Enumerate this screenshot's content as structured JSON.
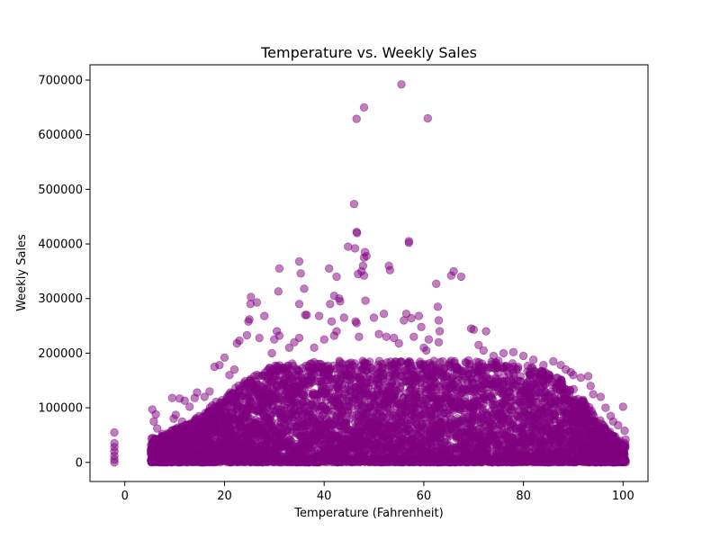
{
  "chart_data": {
    "type": "scatter",
    "title": "Temperature vs. Weekly Sales",
    "xlabel": "Temperature (Fahrenheit)",
    "ylabel": "Weekly Sales",
    "xlim": [
      -7,
      105
    ],
    "ylim": [
      -35000,
      728000
    ],
    "xticks": [
      0,
      20,
      40,
      60,
      80,
      100
    ],
    "yticks": [
      0,
      100000,
      200000,
      300000,
      400000,
      500000,
      600000,
      700000
    ],
    "ytick_labels": [
      "0",
      "100000",
      "200000",
      "300000",
      "400000",
      "500000",
      "600000",
      "700000"
    ],
    "xtick_labels": [
      "0",
      "20",
      "40",
      "60",
      "80",
      "100"
    ],
    "grid": false,
    "legend": "none",
    "color": "#800080",
    "alpha": 0.5,
    "series": [
      {
        "points": [
          [
            -2.1,
            55000
          ],
          [
            -2.1,
            35000
          ],
          [
            -2.1,
            28000
          ],
          [
            -2.1,
            20000
          ],
          [
            -2.1,
            12000
          ],
          [
            -2.1,
            5000
          ],
          [
            -2.1,
            0
          ],
          [
            5.5,
            97000
          ],
          [
            6.2,
            88000
          ],
          [
            5.8,
            75000
          ],
          [
            6.5,
            62000
          ],
          [
            7.5,
            52000
          ],
          [
            8.2,
            45000
          ],
          [
            9.5,
            118000
          ],
          [
            11.0,
            117000
          ],
          [
            12.0,
            113000
          ],
          [
            13.0,
            102000
          ],
          [
            14.0,
            118000
          ],
          [
            14.5,
            128000
          ],
          [
            10.2,
            87000
          ],
          [
            9.8,
            80000
          ],
          [
            11.5,
            75000
          ],
          [
            16.0,
            120000
          ],
          [
            17.0,
            130000
          ],
          [
            18.0,
            175000
          ],
          [
            19.0,
            178000
          ],
          [
            20.0,
            192000
          ],
          [
            21.0,
            160000
          ],
          [
            22.0,
            170000
          ],
          [
            22.5,
            218000
          ],
          [
            23.0,
            223000
          ],
          [
            24.5,
            233000
          ],
          [
            24.8,
            258000
          ],
          [
            25.0,
            262000
          ],
          [
            25.2,
            290000
          ],
          [
            25.3,
            303000
          ],
          [
            26.5,
            293000
          ],
          [
            27.0,
            228000
          ],
          [
            28.0,
            268000
          ],
          [
            29.5,
            200000
          ],
          [
            30.0,
            225000
          ],
          [
            30.5,
            240000
          ],
          [
            31.0,
            232000
          ],
          [
            31.0,
            355000
          ],
          [
            30.8,
            313000
          ],
          [
            33.0,
            210000
          ],
          [
            34.0,
            220000
          ],
          [
            35.0,
            228000
          ],
          [
            35.0,
            368000
          ],
          [
            35.3,
            346000
          ],
          [
            35.0,
            290000
          ],
          [
            36.0,
            318000
          ],
          [
            36.2,
            270000
          ],
          [
            36.5,
            270000
          ],
          [
            38.0,
            210000
          ],
          [
            39.0,
            268000
          ],
          [
            40.0,
            225000
          ],
          [
            41.0,
            355000
          ],
          [
            41.2,
            290000
          ],
          [
            41.5,
            258000
          ],
          [
            42.0,
            305000
          ],
          [
            42.5,
            340000
          ],
          [
            43.0,
            300000
          ],
          [
            43.2,
            295000
          ],
          [
            42.0,
            232000
          ],
          [
            42.5,
            240000
          ],
          [
            44.0,
            265000
          ],
          [
            44.8,
            395000
          ],
          [
            46.0,
            473000
          ],
          [
            46.2,
            392000
          ],
          [
            46.5,
            422000
          ],
          [
            46.6,
            420000
          ],
          [
            46.8,
            345000
          ],
          [
            47.5,
            350000
          ],
          [
            47.8,
            360000
          ],
          [
            48.0,
            375000
          ],
          [
            48.2,
            385000
          ],
          [
            48.5,
            378000
          ],
          [
            48.0,
            342000
          ],
          [
            48.3,
            296000
          ],
          [
            46.5,
            255000
          ],
          [
            46.3,
            258000
          ],
          [
            47.0,
            230000
          ],
          [
            46.5,
            629000
          ],
          [
            48.0,
            650000
          ],
          [
            50.0,
            265000
          ],
          [
            51.0,
            235000
          ],
          [
            52.0,
            272000
          ],
          [
            52.5,
            230000
          ],
          [
            53.0,
            360000
          ],
          [
            53.2,
            352000
          ],
          [
            54.0,
            228000
          ],
          [
            55.0,
            218000
          ],
          [
            55.5,
            692000
          ],
          [
            56.0,
            260000
          ],
          [
            56.5,
            272000
          ],
          [
            57.0,
            405000
          ],
          [
            57.0,
            402000
          ],
          [
            57.5,
            264000
          ],
          [
            58.0,
            230000
          ],
          [
            59.0,
            268000
          ],
          [
            59.5,
            248000
          ],
          [
            60.0,
            210000
          ],
          [
            60.5,
            205000
          ],
          [
            60.8,
            630000
          ],
          [
            61.0,
            225000
          ],
          [
            62.5,
            327000
          ],
          [
            62.8,
            285000
          ],
          [
            63.0,
            260000
          ],
          [
            63.2,
            240000
          ],
          [
            63.0,
            220000
          ],
          [
            65.5,
            342000
          ],
          [
            66.0,
            350000
          ],
          [
            67.5,
            340000
          ],
          [
            69.5,
            245000
          ],
          [
            70.0,
            243000
          ],
          [
            71.0,
            215000
          ],
          [
            72.5,
            240000
          ],
          [
            72.0,
            205000
          ],
          [
            74.0,
            195000
          ],
          [
            76.0,
            200000
          ],
          [
            78.0,
            202000
          ],
          [
            80.0,
            195000
          ],
          [
            82.0,
            188000
          ],
          [
            84.0,
            178000
          ],
          [
            86.0,
            185000
          ],
          [
            87.5,
            178000
          ],
          [
            88.5,
            170000
          ],
          [
            89.5,
            165000
          ],
          [
            90.0,
            160000
          ],
          [
            91.5,
            155000
          ],
          [
            93.0,
            158000
          ],
          [
            93.5,
            140000
          ],
          [
            94.0,
            125000
          ],
          [
            95.5,
            120000
          ],
          [
            96.5,
            100000
          ],
          [
            97.5,
            85000
          ],
          [
            98.0,
            75000
          ],
          [
            99.0,
            68000
          ],
          [
            100.0,
            102000
          ],
          [
            100.3,
            58000
          ],
          [
            100.5,
            42000
          ],
          [
            100.2,
            30000
          ],
          [
            100.0,
            15000
          ],
          [
            99.8,
            5000
          ],
          [
            100.5,
            0
          ]
        ],
        "dense_band": {
          "x": [
            5.2,
            8,
            10,
            12,
            14,
            16,
            18,
            20,
            22,
            24,
            26,
            28,
            30,
            35,
            40,
            45,
            50,
            55,
            60,
            65,
            70,
            75,
            80,
            85,
            88,
            90,
            92,
            94,
            96,
            98,
            100.5
          ],
          "y_max": [
            45000,
            50000,
            62000,
            70000,
            80000,
            95000,
            110000,
            120000,
            135000,
            150000,
            160000,
            170000,
            178000,
            182000,
            185000,
            187000,
            186000,
            185000,
            186000,
            187000,
            187000,
            186000,
            180000,
            165000,
            150000,
            135000,
            115000,
            95000,
            70000,
            50000,
            35000
          ]
        }
      }
    ]
  }
}
